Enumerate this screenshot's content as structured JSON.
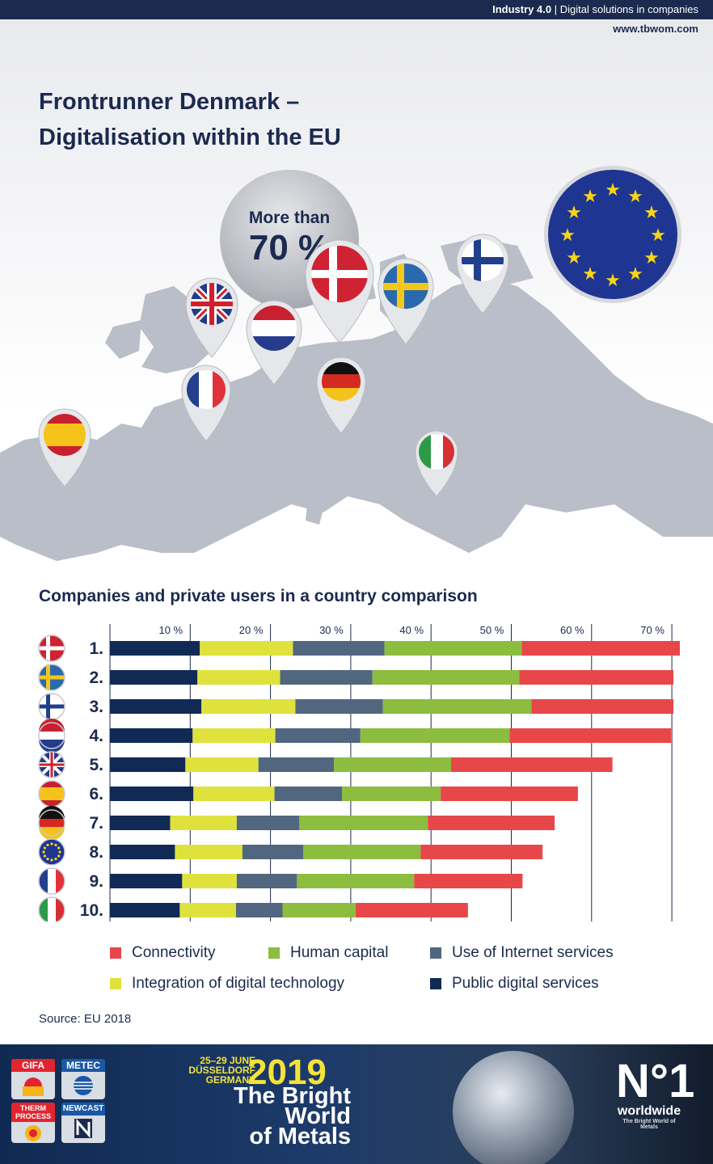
{
  "header": {
    "section": "Industry 4.0",
    "separator": "|",
    "subsection": "Digital solutions in companies",
    "website": "www.tbwom.com"
  },
  "hero": {
    "title_line1": "Frontrunner Denmark –",
    "title_line2": "Digitalisation within the EU",
    "bubble_line1": "More than",
    "bubble_line2": "70 %"
  },
  "chart_data": {
    "type": "bar",
    "orientation": "horizontal",
    "stacked": true,
    "title": "Companies and private users in a country comparison",
    "x_ticks": [
      "10 %",
      "20 %",
      "30 %",
      "40 %",
      "50 %",
      "60 %",
      "70 %"
    ],
    "xlim": [
      0,
      71
    ],
    "grid": true,
    "legend_position": "bottom",
    "categories": [
      "1.",
      "2.",
      "3.",
      "4.",
      "5.",
      "6.",
      "7.",
      "8.",
      "9.",
      "10."
    ],
    "category_flags": [
      "Denmark",
      "Sweden",
      "Finland",
      "Netherlands",
      "United Kingdom",
      "Spain",
      "Germany",
      "EU",
      "France",
      "Italy"
    ],
    "series": [
      {
        "name": "Public digital services",
        "color": "#112a55",
        "values": [
          11.2,
          10.9,
          11.4,
          10.3,
          9.4,
          10.4,
          7.5,
          8.1,
          9.0,
          8.7
        ]
      },
      {
        "name": "Integration of digital technology",
        "color": "#dfe23c",
        "values": [
          11.6,
          10.3,
          11.7,
          10.3,
          9.1,
          10.1,
          8.3,
          8.4,
          6.8,
          7.0
        ]
      },
      {
        "name": "Use of Internet services",
        "color": "#50677f",
        "values": [
          11.4,
          11.5,
          10.9,
          10.6,
          9.4,
          8.4,
          7.8,
          7.6,
          7.5,
          5.8
        ]
      },
      {
        "name": "Human capital",
        "color": "#8cbd3f",
        "values": [
          17.1,
          18.3,
          18.5,
          18.6,
          14.6,
          12.3,
          16.0,
          14.6,
          14.6,
          9.1
        ]
      },
      {
        "name": "Connectivity",
        "color": "#e8474a",
        "values": [
          19.7,
          19.2,
          17.7,
          20.1,
          20.1,
          17.1,
          15.8,
          15.2,
          13.5,
          14.0
        ]
      }
    ],
    "legend": [
      {
        "label": "Connectivity",
        "color": "#e8474a"
      },
      {
        "label": "Human capital",
        "color": "#8cbd3f"
      },
      {
        "label": "Use of Internet services",
        "color": "#50677f"
      },
      {
        "label": "Integration of digital technology",
        "color": "#dfe23c"
      },
      {
        "label": "Public digital services",
        "color": "#112a55"
      }
    ]
  },
  "source": "Source: EU 2018",
  "banner": {
    "logos": [
      "GIFA",
      "METEC",
      "THERM PROCESS",
      "NEWCAST"
    ],
    "date_line1": "25–29 JUNE",
    "date_line2": "DÜSSELDORF",
    "date_line3": "GERMANY",
    "year": "2019",
    "slogan_line1": "The Bright",
    "slogan_line2": "World",
    "slogan_line3": "of Metals",
    "n1_mark": "N°1",
    "n1_word": "worldwide",
    "n1_tagline": "The Bright World of Metals"
  }
}
